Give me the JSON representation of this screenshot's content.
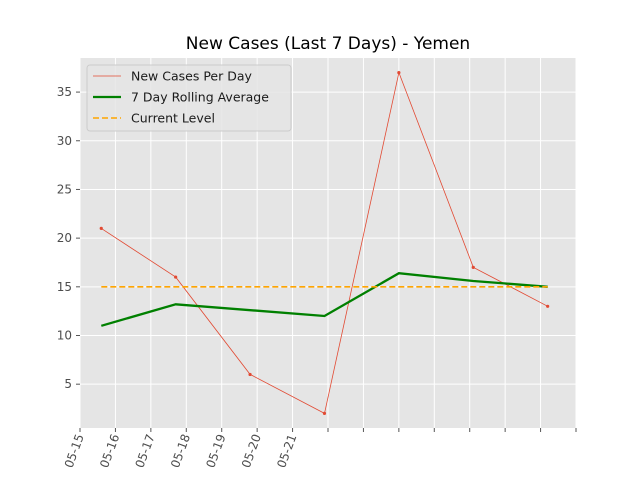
{
  "chart_data": {
    "type": "line",
    "title": "New Cases (Last 7 Days) - Yemen",
    "xlabel": "",
    "ylabel": "",
    "x_tick_labels": [
      "05-15",
      "05-16",
      "05-17",
      "05-18",
      "05-19",
      "05-20",
      "05-21",
      "",
      "",
      "",
      "",
      "",
      "",
      "",
      ""
    ],
    "x_ticks": [
      0,
      1,
      2,
      3,
      4,
      5,
      6,
      7,
      8,
      9,
      10,
      11,
      12,
      13,
      14
    ],
    "xlim": [
      0,
      14
    ],
    "ylim": [
      0.5,
      38.5
    ],
    "y_ticks": [
      5,
      10,
      15,
      20,
      25,
      30,
      35
    ],
    "grid": true,
    "legend_position": "top-left",
    "series": [
      {
        "name": "New Cases Per Day",
        "style": "thin-line-with-points",
        "color": "#e24a33",
        "x": [
          0.6,
          2.7,
          4.8,
          6.9,
          9.0,
          11.1,
          13.2
        ],
        "values": [
          21,
          16,
          6,
          2,
          37,
          17,
          13
        ]
      },
      {
        "name": "7 Day Rolling Average",
        "style": "thick-line",
        "color": "#008000",
        "x": [
          0.6,
          2.7,
          6.9,
          9.0,
          11.1,
          13.2
        ],
        "values": [
          11,
          13.2,
          12,
          16.4,
          15.6,
          15
        ]
      },
      {
        "name": "Current Level",
        "style": "dashed-line",
        "color": "#ffa500",
        "x": [
          0.6,
          13.2
        ],
        "values": [
          15,
          15
        ]
      }
    ]
  }
}
